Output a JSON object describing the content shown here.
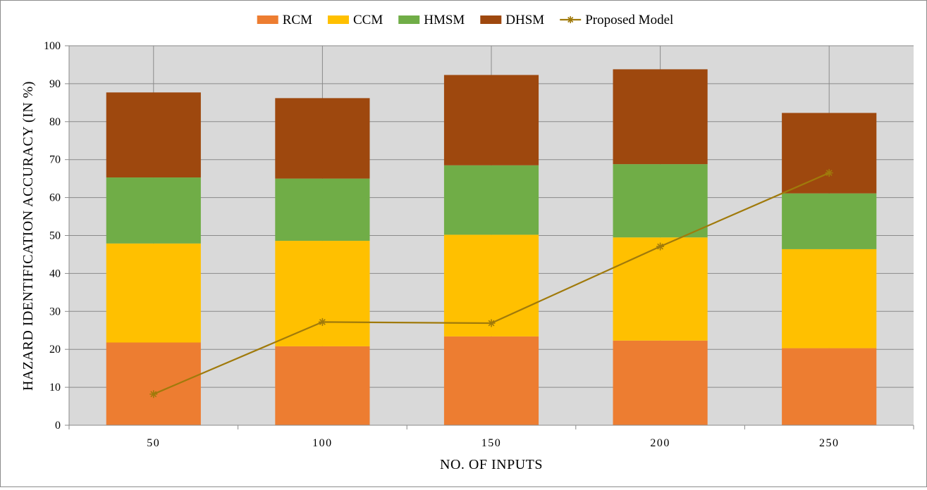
{
  "chart_data": {
    "type": "bar",
    "stacked": true,
    "categories": [
      "50",
      "100",
      "150",
      "200",
      "250"
    ],
    "series": [
      {
        "name": "RCM",
        "color": "#ED7D31",
        "values": [
          21.8,
          20.8,
          23.4,
          22.3,
          20.3
        ]
      },
      {
        "name": "CCM",
        "color": "#FFC000",
        "values": [
          26.1,
          27.8,
          26.8,
          27.2,
          26.1
        ]
      },
      {
        "name": "HMSM",
        "color": "#70AD47",
        "values": [
          17.4,
          16.4,
          18.3,
          19.3,
          14.7
        ]
      },
      {
        "name": "DHSM",
        "color": "#9E480E",
        "values": [
          22.4,
          21.2,
          23.8,
          25.0,
          21.2
        ]
      }
    ],
    "line_series": {
      "name": "Proposed Model",
      "color": "#A07A0B",
      "marker": "asterisk",
      "values": [
        8.2,
        27.2,
        26.9,
        47.1,
        66.5
      ]
    },
    "xlabel": "NO. OF INPUTS",
    "ylabel": "HAZARD IDENTIFICATION ACCURACY (IN %)",
    "ylim": [
      0,
      100
    ],
    "yticks": [
      "0",
      "10",
      "20",
      "30",
      "40",
      "50",
      "60",
      "70",
      "80",
      "90",
      "100"
    ],
    "grid": true,
    "plot_background": "#D9D9D9",
    "legend_position": "top"
  }
}
